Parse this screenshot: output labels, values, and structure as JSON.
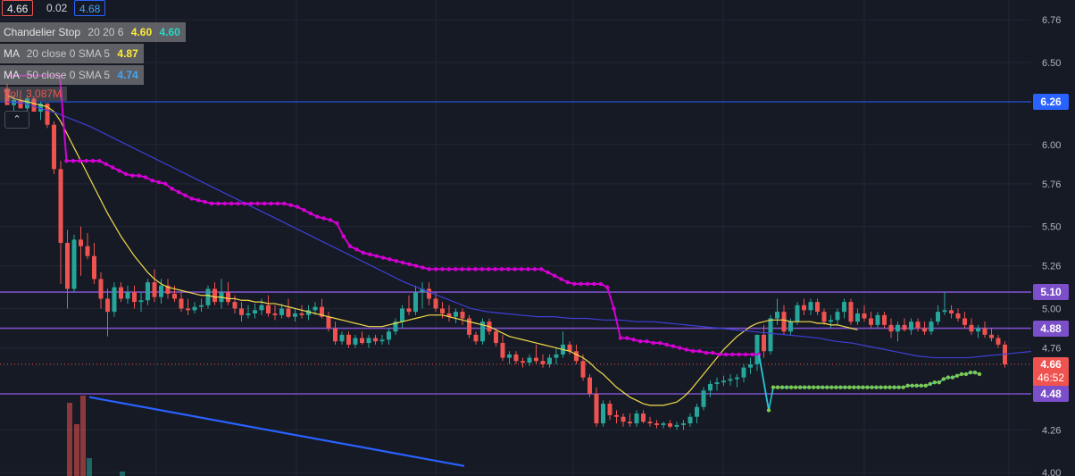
{
  "header": {
    "values": [
      {
        "text": "4.66",
        "color": "#f0f0f0",
        "border": "#ef5350"
      },
      {
        "text": "0.02",
        "color": "#d1d4dc",
        "border": "transparent"
      },
      {
        "text": "4.68",
        "color": "#42a5f5",
        "border": "#2962ff"
      }
    ]
  },
  "legend": {
    "chandelier": {
      "name": "Chandelier Stop",
      "params": "20 20 6",
      "v1": "4.60",
      "v2": "4.60"
    },
    "ma20": {
      "name": "MA",
      "params": "20 close 0 SMA 5",
      "value": "4.87"
    },
    "ma50": {
      "name": "MA",
      "params": "50 close 0 SMA 5",
      "value": "4.74"
    },
    "vol": {
      "name": "Vol",
      "value": "3.087M"
    },
    "collapse_icon": "chevron-up-icon"
  },
  "price_tags": [
    {
      "label": "6.26",
      "color": "#2962ff"
    },
    {
      "label": "5.10",
      "color": "#7b4fc9"
    },
    {
      "label": "4.88",
      "color": "#7b4fc9"
    },
    {
      "label": "4.48",
      "color": "#7b4fc9"
    }
  ],
  "last_price": {
    "price": "4.66",
    "countdown": "46:52",
    "color": "#ef5350"
  },
  "colors": {
    "background": "#161a25",
    "up": "#26a69a",
    "down": "#ef5350",
    "chandelier_stop": "#d400d4",
    "ma20": "#f2dc4b",
    "ma50": "#3f3fd6",
    "chandelier_long": "#7ec850",
    "trendline": "#2962ff"
  },
  "chart_data": {
    "type": "candlestick",
    "y_axis": {
      "ticks": [
        6.76,
        6.5,
        6.26,
        6.0,
        5.76,
        5.5,
        5.26,
        5.0,
        4.76,
        4.26,
        4.0
      ],
      "range": [
        4.0,
        6.81
      ]
    },
    "horizontal_levels": [
      6.26,
      5.1,
      4.88,
      4.48
    ],
    "last_price": 4.66,
    "candles": [
      [
        6.34,
        6.37,
        6.24,
        6.24
      ],
      [
        6.24,
        6.3,
        6.2,
        6.27
      ],
      [
        6.27,
        6.33,
        6.22,
        6.22
      ],
      [
        6.22,
        6.3,
        6.2,
        6.28
      ],
      [
        6.28,
        6.29,
        6.2,
        6.2
      ],
      [
        6.2,
        6.26,
        6.15,
        6.25
      ],
      [
        6.25,
        6.25,
        6.1,
        6.12
      ],
      [
        6.12,
        6.14,
        5.82,
        5.85
      ],
      [
        5.85,
        5.9,
        5.15,
        5.4
      ],
      [
        5.4,
        5.48,
        5.0,
        5.12
      ],
      [
        5.12,
        5.45,
        5.1,
        5.42
      ],
      [
        5.42,
        5.5,
        5.2,
        5.38
      ],
      [
        5.38,
        5.46,
        5.3,
        5.32
      ],
      [
        5.32,
        5.4,
        5.15,
        5.18
      ],
      [
        5.18,
        5.22,
        5.0,
        5.06
      ],
      [
        5.06,
        5.12,
        4.83,
        4.98
      ],
      [
        4.98,
        5.16,
        4.95,
        5.13
      ],
      [
        5.13,
        5.16,
        5.04,
        5.06
      ],
      [
        5.06,
        5.14,
        5.03,
        5.1
      ],
      [
        5.1,
        5.14,
        5.0,
        5.04
      ],
      [
        5.04,
        5.1,
        4.98,
        5.05
      ],
      [
        5.05,
        5.18,
        5.02,
        5.16
      ],
      [
        5.16,
        5.24,
        5.04,
        5.07
      ],
      [
        5.07,
        5.18,
        5.03,
        5.14
      ],
      [
        5.14,
        5.18,
        5.06,
        5.09
      ],
      [
        5.09,
        5.14,
        5.04,
        5.06
      ],
      [
        5.06,
        5.1,
        4.98,
        5.0
      ],
      [
        5.0,
        5.06,
        4.96,
        4.99
      ],
      [
        4.99,
        5.04,
        4.97,
        5.01
      ],
      [
        5.01,
        5.06,
        4.98,
        5.02
      ],
      [
        5.02,
        5.14,
        5.0,
        5.12
      ],
      [
        5.12,
        5.16,
        5.02,
        5.04
      ],
      [
        5.04,
        5.18,
        5.0,
        5.1
      ],
      [
        5.1,
        5.16,
        5.02,
        5.04
      ],
      [
        5.04,
        5.08,
        4.97,
        5.0
      ],
      [
        5.0,
        5.04,
        4.92,
        4.96
      ],
      [
        4.96,
        5.02,
        4.94,
        4.97
      ],
      [
        4.97,
        5.03,
        4.94,
        4.99
      ],
      [
        4.99,
        5.06,
        4.96,
        5.02
      ],
      [
        5.02,
        5.08,
        4.95,
        4.97
      ],
      [
        4.97,
        5.02,
        4.93,
        4.96
      ],
      [
        4.96,
        5.03,
        4.94,
        5.0
      ],
      [
        5.0,
        5.06,
        4.94,
        4.95
      ],
      [
        4.95,
        5.0,
        4.92,
        4.97
      ],
      [
        4.97,
        5.02,
        4.94,
        4.96
      ],
      [
        4.96,
        5.02,
        4.93,
        4.99
      ],
      [
        4.99,
        5.04,
        4.96,
        5.01
      ],
      [
        5.01,
        5.06,
        4.94,
        4.95
      ],
      [
        4.95,
        4.98,
        4.86,
        4.88
      ],
      [
        4.88,
        4.92,
        4.78,
        4.8
      ],
      [
        4.8,
        4.86,
        4.78,
        4.84
      ],
      [
        4.84,
        4.86,
        4.76,
        4.78
      ],
      [
        4.78,
        4.84,
        4.76,
        4.82
      ],
      [
        4.82,
        4.86,
        4.78,
        4.79
      ],
      [
        4.79,
        4.84,
        4.76,
        4.82
      ],
      [
        4.82,
        4.84,
        4.78,
        4.8
      ],
      [
        4.8,
        4.84,
        4.78,
        4.81
      ],
      [
        4.81,
        4.88,
        4.78,
        4.86
      ],
      [
        4.86,
        4.94,
        4.84,
        4.92
      ],
      [
        4.92,
        5.02,
        4.88,
        5.0
      ],
      [
        5.0,
        5.08,
        4.96,
        4.98
      ],
      [
        4.98,
        5.14,
        4.96,
        5.1
      ],
      [
        5.1,
        5.16,
        5.0,
        5.12
      ],
      [
        5.12,
        5.16,
        5.02,
        5.06
      ],
      [
        5.06,
        5.1,
        4.98,
        5.0
      ],
      [
        5.0,
        5.04,
        4.94,
        4.97
      ],
      [
        4.97,
        5.02,
        4.92,
        4.95
      ],
      [
        4.95,
        5.0,
        4.91,
        4.98
      ],
      [
        4.98,
        5.0,
        4.9,
        4.94
      ],
      [
        4.94,
        4.96,
        4.82,
        4.84
      ],
      [
        4.84,
        4.86,
        4.78,
        4.8
      ],
      [
        4.8,
        4.94,
        4.78,
        4.92
      ],
      [
        4.92,
        4.94,
        4.84,
        4.86
      ],
      [
        4.86,
        4.88,
        4.77,
        4.79
      ],
      [
        4.79,
        4.84,
        4.68,
        4.7
      ],
      [
        4.7,
        4.74,
        4.66,
        4.72
      ],
      [
        4.72,
        4.74,
        4.66,
        4.68
      ],
      [
        4.68,
        4.7,
        4.64,
        4.67
      ],
      [
        4.67,
        4.72,
        4.65,
        4.7
      ],
      [
        4.7,
        4.78,
        4.66,
        4.68
      ],
      [
        4.68,
        4.72,
        4.64,
        4.66
      ],
      [
        4.66,
        4.72,
        4.64,
        4.7
      ],
      [
        4.7,
        4.76,
        4.66,
        4.72
      ],
      [
        4.72,
        4.86,
        4.7,
        4.78
      ],
      [
        4.78,
        4.8,
        4.72,
        4.74
      ],
      [
        4.74,
        4.78,
        4.66,
        4.68
      ],
      [
        4.68,
        4.72,
        4.56,
        4.58
      ],
      [
        4.58,
        4.6,
        4.46,
        4.48
      ],
      [
        4.48,
        4.52,
        4.28,
        4.3
      ],
      [
        4.3,
        4.44,
        4.28,
        4.42
      ],
      [
        4.42,
        4.44,
        4.32,
        4.35
      ],
      [
        4.35,
        4.38,
        4.3,
        4.34
      ],
      [
        4.34,
        4.36,
        4.28,
        4.31
      ],
      [
        4.31,
        4.36,
        4.28,
        4.3
      ],
      [
        4.3,
        4.38,
        4.28,
        4.36
      ],
      [
        4.36,
        4.38,
        4.3,
        4.31
      ],
      [
        4.31,
        4.34,
        4.28,
        4.3
      ],
      [
        4.3,
        4.32,
        4.27,
        4.29
      ],
      [
        4.29,
        4.31,
        4.27,
        4.3
      ],
      [
        4.3,
        4.32,
        4.27,
        4.28
      ],
      [
        4.28,
        4.31,
        4.26,
        4.29
      ],
      [
        4.29,
        4.32,
        4.26,
        4.3
      ],
      [
        4.3,
        4.36,
        4.28,
        4.34
      ],
      [
        4.34,
        4.42,
        4.3,
        4.4
      ],
      [
        4.4,
        4.52,
        4.38,
        4.5
      ],
      [
        4.5,
        4.56,
        4.46,
        4.54
      ],
      [
        4.54,
        4.58,
        4.5,
        4.55
      ],
      [
        4.55,
        4.59,
        4.53,
        4.56
      ],
      [
        4.56,
        4.6,
        4.53,
        4.57
      ],
      [
        4.57,
        4.6,
        4.52,
        4.58
      ],
      [
        4.58,
        4.66,
        4.55,
        4.64
      ],
      [
        4.64,
        4.7,
        4.6,
        4.66
      ],
      [
        4.66,
        4.84,
        4.62,
        4.84
      ],
      [
        4.84,
        4.9,
        4.7,
        4.74
      ],
      [
        4.74,
        4.96,
        4.72,
        4.94
      ],
      [
        4.94,
        5.06,
        4.9,
        4.98
      ],
      [
        4.98,
        5.02,
        4.84,
        4.86
      ],
      [
        4.86,
        4.94,
        4.84,
        4.92
      ],
      [
        4.92,
        5.04,
        4.9,
        5.02
      ],
      [
        5.02,
        5.06,
        4.96,
        4.99
      ],
      [
        4.99,
        5.06,
        4.96,
        5.04
      ],
      [
        5.04,
        5.06,
        4.96,
        4.98
      ],
      [
        4.98,
        5.0,
        4.9,
        4.92
      ],
      [
        4.92,
        4.96,
        4.88,
        4.93
      ],
      [
        4.93,
        5.0,
        4.9,
        4.98
      ],
      [
        4.98,
        5.06,
        4.94,
        5.04
      ],
      [
        5.04,
        5.06,
        4.9,
        4.92
      ],
      [
        4.92,
        5.0,
        4.9,
        4.97
      ],
      [
        4.97,
        5.02,
        4.92,
        4.94
      ],
      [
        4.94,
        4.98,
        4.88,
        4.9
      ],
      [
        4.9,
        4.98,
        4.88,
        4.96
      ],
      [
        4.96,
        4.98,
        4.88,
        4.9
      ],
      [
        4.9,
        4.94,
        4.82,
        4.86
      ],
      [
        4.86,
        4.92,
        4.8,
        4.9
      ],
      [
        4.9,
        4.94,
        4.86,
        4.87
      ],
      [
        4.87,
        4.94,
        4.84,
        4.92
      ],
      [
        4.92,
        4.94,
        4.86,
        4.88
      ],
      [
        4.88,
        4.92,
        4.84,
        4.86
      ],
      [
        4.86,
        4.94,
        4.84,
        4.92
      ],
      [
        4.92,
        5.02,
        4.9,
        4.98
      ],
      [
        4.98,
        5.1,
        4.96,
        4.99
      ],
      [
        4.99,
        5.02,
        4.94,
        4.97
      ],
      [
        4.97,
        5.0,
        4.92,
        4.94
      ],
      [
        4.94,
        4.98,
        4.88,
        4.9
      ],
      [
        4.9,
        4.94,
        4.84,
        4.86
      ],
      [
        4.86,
        4.9,
        4.82,
        4.88
      ],
      [
        4.88,
        4.92,
        4.82,
        4.84
      ],
      [
        4.84,
        4.88,
        4.8,
        4.82
      ],
      [
        4.82,
        4.84,
        4.76,
        4.78
      ],
      [
        4.78,
        4.8,
        4.64,
        4.66
      ]
    ],
    "chandelier_stop": [
      6.42,
      6.42,
      6.42,
      6.42,
      6.42,
      6.42,
      6.42,
      6.42,
      6.42,
      5.9,
      5.9,
      5.9,
      5.9,
      5.9,
      5.9,
      5.88,
      5.86,
      5.84,
      5.82,
      5.81,
      5.81,
      5.8,
      5.78,
      5.77,
      5.76,
      5.73,
      5.71,
      5.69,
      5.67,
      5.66,
      5.65,
      5.64,
      5.64,
      5.64,
      5.64,
      5.64,
      5.64,
      5.64,
      5.64,
      5.64,
      5.64,
      5.64,
      5.64,
      5.63,
      5.62,
      5.6,
      5.58,
      5.56,
      5.55,
      5.54,
      5.52,
      5.44,
      5.38,
      5.36,
      5.34,
      5.33,
      5.32,
      5.31,
      5.3,
      5.29,
      5.28,
      5.27,
      5.26,
      5.25,
      5.24,
      5.24,
      5.24,
      5.24,
      5.24,
      5.24,
      5.24,
      5.24,
      5.24,
      5.24,
      5.24,
      5.24,
      5.24,
      5.24,
      5.24,
      5.24,
      5.24,
      5.24,
      5.22,
      5.2,
      5.18,
      5.16,
      5.15,
      5.15,
      5.15,
      5.15,
      5.15,
      5.13,
      5.0,
      4.82,
      4.82,
      4.81,
      4.8,
      4.8,
      4.79,
      4.79,
      4.78,
      4.77,
      4.76,
      4.75,
      4.74,
      4.74,
      4.73,
      4.73,
      4.72,
      4.72,
      4.72,
      4.72,
      4.72,
      4.72,
      4.72
    ],
    "chandelier_long": [
      4.38,
      4.52,
      4.52,
      4.52,
      4.52,
      4.52,
      4.52,
      4.52,
      4.52,
      4.52,
      4.52,
      4.52,
      4.52,
      4.52,
      4.52,
      4.52,
      4.52,
      4.52,
      4.52,
      4.52,
      4.52,
      4.52,
      4.52,
      4.52,
      4.52,
      4.52,
      4.52,
      4.52,
      4.52,
      4.52,
      4.52,
      4.53,
      4.53,
      4.53,
      4.53,
      4.53,
      4.54,
      4.55,
      4.55,
      4.57,
      4.58,
      4.58,
      4.59,
      4.6,
      4.6,
      4.61,
      4.61,
      4.6
    ],
    "ma20": [
      6.3,
      6.28,
      6.27,
      6.26,
      6.25,
      6.24,
      6.23,
      6.2,
      6.14,
      6.06,
      5.98,
      5.9,
      5.82,
      5.74,
      5.66,
      5.58,
      5.51,
      5.44,
      5.38,
      5.32,
      5.27,
      5.22,
      5.18,
      5.15,
      5.13,
      5.12,
      5.11,
      5.1,
      5.09,
      5.08,
      5.08,
      5.07,
      5.07,
      5.06,
      5.06,
      5.05,
      5.05,
      5.04,
      5.04,
      5.03,
      5.03,
      5.02,
      5.01,
      5.0,
      4.99,
      4.98,
      4.97,
      4.96,
      4.95,
      4.94,
      4.93,
      4.92,
      4.91,
      4.9,
      4.89,
      4.89,
      4.89,
      4.9,
      4.91,
      4.92,
      4.93,
      4.94,
      4.95,
      4.96,
      4.96,
      4.96,
      4.95,
      4.94,
      4.93,
      4.92,
      4.91,
      4.9,
      4.89,
      4.87,
      4.85,
      4.83,
      4.82,
      4.81,
      4.8,
      4.79,
      4.78,
      4.77,
      4.76,
      4.75,
      4.74,
      4.72,
      4.7,
      4.67,
      4.63,
      4.6,
      4.56,
      4.52,
      4.49,
      4.46,
      4.44,
      4.42,
      4.41,
      4.41,
      4.41,
      4.42,
      4.43,
      4.46,
      4.5,
      4.55,
      4.6,
      4.65,
      4.7,
      4.75,
      4.79,
      4.83,
      4.86,
      4.89,
      4.91,
      4.92,
      4.93,
      4.93,
      4.93,
      4.92,
      4.92,
      4.92,
      4.92,
      4.91,
      4.91,
      4.9,
      4.9,
      4.89,
      4.88,
      4.87
    ],
    "ma50": [
      6.26,
      6.25,
      6.22,
      6.19,
      6.15,
      6.11,
      6.06,
      6.01,
      5.96,
      5.91,
      5.86,
      5.81,
      5.76,
      5.71,
      5.66,
      5.61,
      5.56,
      5.51,
      5.46,
      5.41,
      5.36,
      5.31,
      5.26,
      5.21,
      5.16,
      5.12,
      5.08,
      5.04,
      5.0,
      4.98,
      4.97,
      4.96,
      4.95,
      4.95,
      4.94,
      4.94,
      4.93,
      4.93,
      4.92,
      4.92,
      4.91,
      4.9,
      4.89,
      4.88,
      4.87,
      4.86,
      4.85,
      4.84,
      4.83,
      4.82,
      4.8,
      4.79,
      4.77,
      4.75,
      4.73,
      4.71,
      4.7,
      4.7,
      4.7,
      4.71,
      4.72,
      4.73,
      4.74
    ],
    "trendline": [
      [
        3,
        4.46
      ],
      [
        15,
        4.04
      ]
    ],
    "volume": [
      {
        "x": 78,
        "h": 82,
        "up": false
      },
      {
        "x": 86,
        "h": 58,
        "up": false
      },
      {
        "x": 93,
        "h": 90,
        "up": false
      },
      {
        "x": 100,
        "h": 20,
        "up": true
      },
      {
        "x": 137,
        "h": 5,
        "up": true
      }
    ]
  }
}
